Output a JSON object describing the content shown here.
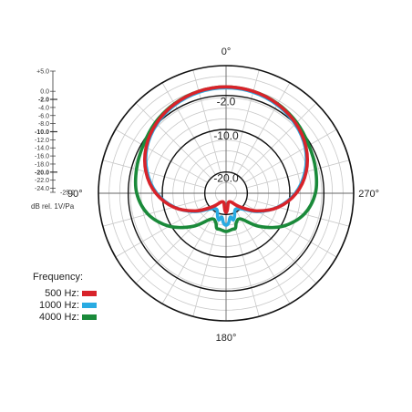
{
  "chart_data": {
    "type": "polar",
    "angle_labels": [
      {
        "angle_deg": 0,
        "text": "0°"
      },
      {
        "angle_deg": 90,
        "text": "90°"
      },
      {
        "angle_deg": 180,
        "text": "180°"
      },
      {
        "angle_deg": 270,
        "text": "270°"
      }
    ],
    "radial_range_db": [
      -25,
      5
    ],
    "bold_rings_db": [
      -2.0,
      -10.0,
      -20.0
    ],
    "ring_labels": [
      "-2.0",
      "-10.0",
      "-20.0"
    ],
    "angular_gridline_step_deg": 15,
    "scale_ticks": [
      "+5.0",
      "0.0",
      "-2.0",
      "-4.0",
      "-6.0",
      "-8.0",
      "-10.0",
      "-12.0",
      "-14.0",
      "-16.0",
      "-18.0",
      "-20.0",
      "-22.0",
      "-24.0",
      "-25.0"
    ],
    "scale_unit": "dB rel. 1V/Pa",
    "legend_title": "Frequency:",
    "series": [
      {
        "name": "500 Hz:",
        "color": "#d8232a",
        "angles_deg": [
          0,
          15,
          30,
          45,
          60,
          75,
          90,
          105,
          120,
          135,
          150,
          165,
          172,
          176,
          180
        ],
        "db": [
          0.0,
          -0.2,
          -0.8,
          -1.8,
          -3.3,
          -5.5,
          -8.5,
          -12.3,
          -16.7,
          -20.5,
          -22.6,
          -22.8,
          -22.0,
          -21.0,
          -20.5
        ]
      },
      {
        "name": "1000 Hz:",
        "color": "#29abe2",
        "angles_deg": [
          0,
          15,
          30,
          45,
          60,
          75,
          90,
          105,
          120,
          135,
          150,
          160,
          165,
          170,
          175,
          180
        ],
        "db": [
          -0.2,
          -0.4,
          -1.0,
          -2.0,
          -3.5,
          -5.8,
          -8.7,
          -12.4,
          -16.4,
          -19.8,
          -20.6,
          -19.2,
          -18.5,
          -19.3,
          -18.0,
          -17.5
        ]
      },
      {
        "name": "4000 Hz:",
        "color": "#1a8a3a",
        "angles_deg": [
          0,
          15,
          30,
          45,
          60,
          75,
          90,
          105,
          120,
          135,
          150,
          160,
          165,
          170,
          175,
          180
        ],
        "db": [
          0.0,
          -0.2,
          -0.7,
          -1.5,
          -2.5,
          -3.2,
          -4.0,
          -6.0,
          -9.5,
          -14.0,
          -18.0,
          -17.8,
          -16.5,
          -16.4,
          -16.2,
          -16.0
        ]
      }
    ]
  }
}
